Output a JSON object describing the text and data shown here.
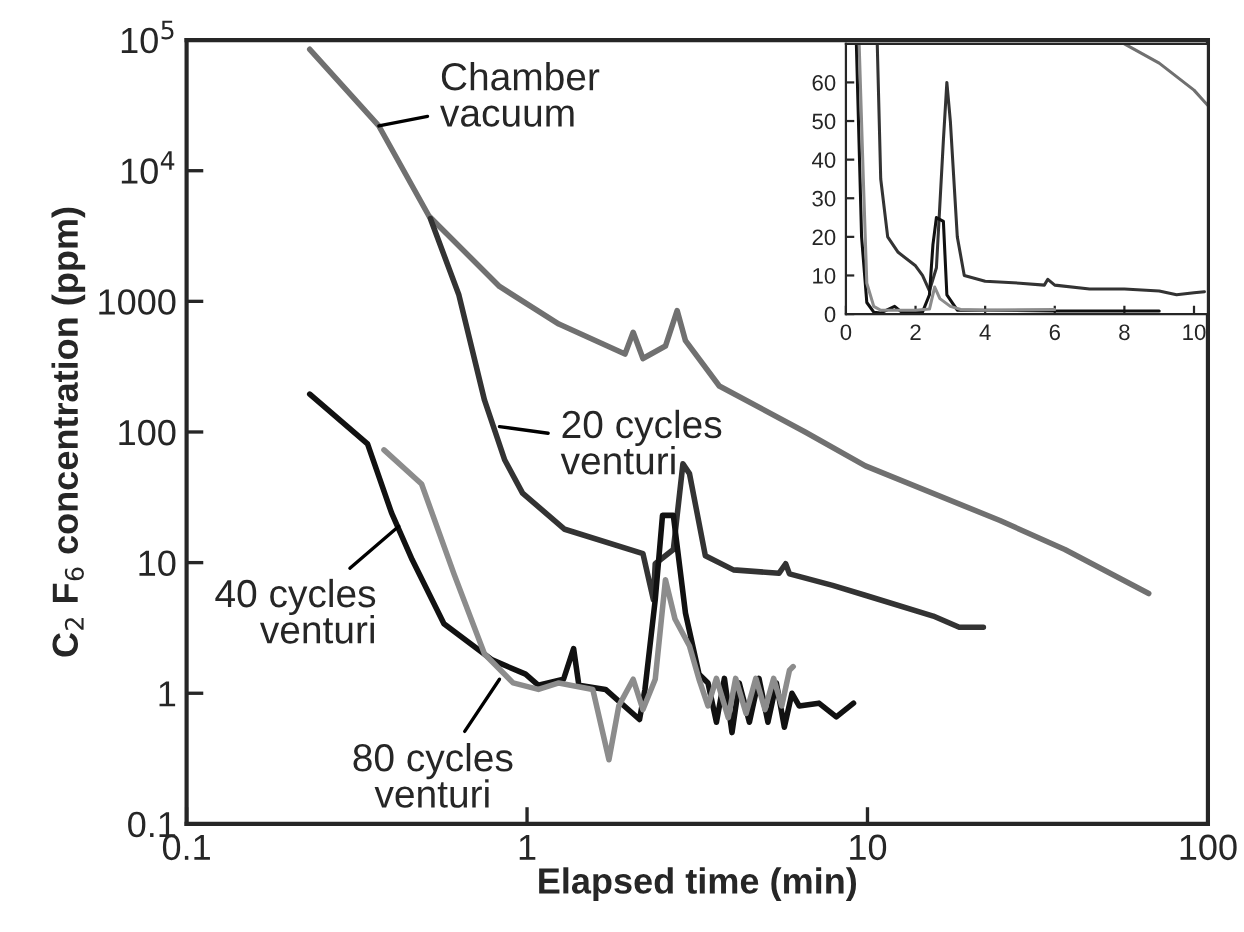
{
  "chart_data": [
    {
      "type": "line",
      "xlabel": "Elapsed time (min)",
      "ylabel": "C$_{2}$ F$_{6}$ concentration (ppm)",
      "log": "xy",
      "xlim": [
        0.1,
        100
      ],
      "xticks": [
        0.1,
        1,
        10,
        100
      ],
      "ylim": [
        0.1,
        100000
      ],
      "yticks": [
        0.1,
        1,
        10,
        100,
        1000,
        {
          "value": 10000,
          "label": "10$^{4}$"
        },
        {
          "value": 100000,
          "label": "10$^{5}$"
        }
      ],
      "grid": false,
      "legend": false,
      "series": [
        {
          "color": "#707070",
          "x": [
            0.23,
            0.367,
            0.515,
            0.83,
            1.24,
            1.94,
            2.05,
            2.19,
            2.55,
            2.76,
            2.92,
            3.67,
            6.56,
            9.86,
            24.5,
            38,
            67
          ],
          "values": [
            85000,
            22000,
            4500,
            1300,
            670,
            395,
            580,
            365,
            455,
            850,
            500,
            225,
            100,
            55,
            21,
            12.6,
            5.8
          ]
        },
        {
          "color": "#333333",
          "x": [
            0.52,
            0.63,
            0.75,
            0.86,
            0.97,
            1.29,
            2.19,
            2.35,
            2.38,
            2.69,
            2.87,
            3.0,
            3.34,
            4.04,
            5.5,
            5.75,
            5.9,
            7.9,
            9.9,
            15.6,
            18.6,
            21.9
          ],
          "values": [
            4300,
            1130,
            175,
            61,
            34,
            18,
            11.7,
            5.2,
            9.8,
            12.6,
            57,
            48,
            11.3,
            8.8,
            8.3,
            9.8,
            8.2,
            6.7,
            5.6,
            3.9,
            3.2,
            3.2
          ]
        },
        {
          "color": "#111111",
          "x": [
            0.23,
            0.34,
            0.4,
            0.46,
            0.57,
            0.79,
            0.99,
            1.08,
            1.28,
            1.37,
            1.42,
            1.7,
            2.14,
            2.22,
            2.38,
            2.5,
            2.69,
            2.92,
            3.2,
            3.4,
            3.6,
            3.8,
            4.0,
            4.2,
            4.5,
            4.8,
            5.1,
            5.4,
            5.7,
            6.0,
            6.3,
            7.2,
            8.1,
            9.1
          ],
          "values": [
            195,
            81,
            24,
            10.5,
            3.4,
            1.8,
            1.4,
            1.15,
            1.28,
            2.2,
            1.15,
            1.07,
            0.63,
            1.07,
            5.2,
            23,
            23,
            4.1,
            1.4,
            1.2,
            0.6,
            1.3,
            0.5,
            1.2,
            0.6,
            1.3,
            0.6,
            1.2,
            0.55,
            1.0,
            0.8,
            0.84,
            0.66,
            0.84
          ]
        },
        {
          "color": "#8c8c8c",
          "x": [
            0.38,
            0.49,
            0.61,
            0.75,
            0.91,
            1.08,
            1.24,
            1.56,
            1.74,
            1.86,
            2.05,
            2.19,
            2.38,
            2.55,
            2.72,
            3.0,
            3.2,
            3.4,
            3.6,
            3.9,
            4.1,
            4.4,
            4.7,
            5.0,
            5.3,
            5.6,
            5.9,
            6.05
          ],
          "values": [
            73,
            40,
            8.2,
            2.0,
            1.2,
            1.07,
            1.2,
            1.07,
            0.31,
            0.8,
            1.28,
            0.75,
            1.28,
            7.4,
            3.7,
            2.3,
            1.28,
            0.8,
            1.3,
            0.65,
            1.3,
            0.7,
            1.3,
            0.75,
            1.3,
            0.8,
            1.5,
            1.6
          ]
        }
      ],
      "annotations": [
        {
          "text": "Chamber\nvacuum",
          "x": 0.367,
          "y": 22000
        },
        {
          "text": "20 cycles\nventuri",
          "x": 0.83,
          "y": 110
        },
        {
          "text": "40 cycles\nventuri",
          "x": 0.42,
          "y": 19
        },
        {
          "text": "80 cycles\nventuri",
          "x": 0.83,
          "y": 1.28
        }
      ]
    },
    {
      "type": "line",
      "xlim": [
        0,
        10.4
      ],
      "xticks": [
        0,
        2,
        4,
        6,
        8,
        10
      ],
      "ylim": [
        0,
        70
      ],
      "yticks": [
        0,
        10,
        20,
        30,
        40,
        50,
        60
      ],
      "grid": false,
      "legend": false,
      "series": [
        {
          "color": "#707070",
          "x": [
            8.0,
            9.0,
            10.0,
            10.4
          ],
          "values": [
            70,
            65,
            58,
            54
          ]
        },
        {
          "color": "#333333",
          "x": [
            0.9,
            1.0,
            1.2,
            1.5,
            2.0,
            2.2,
            2.4,
            2.6,
            2.8,
            2.9,
            3.0,
            3.2,
            3.4,
            4,
            5,
            5.7,
            5.8,
            6,
            7,
            8,
            9,
            9.5,
            10,
            10.3
          ],
          "values": [
            70,
            35,
            20,
            16,
            12.5,
            10,
            6,
            12,
            45,
            60,
            50,
            20,
            10,
            8.5,
            8,
            7.5,
            9,
            7.5,
            6.5,
            6.5,
            6,
            5,
            5.5,
            5.8
          ]
        },
        {
          "color": "#111111",
          "x": [
            0.3,
            0.45,
            0.6,
            0.8,
            1.0,
            1.4,
            1.6,
            2.2,
            2.4,
            2.5,
            2.6,
            2.8,
            2.9,
            3.2,
            4,
            6,
            9
          ],
          "values": [
            70,
            20,
            3,
            0.5,
            0.3,
            2,
            0.5,
            0.5,
            5,
            18,
            25,
            24,
            5,
            1,
            1,
            0.8,
            0.8
          ]
        },
        {
          "color": "#8c8c8c",
          "x": [
            0.38,
            0.5,
            0.6,
            0.8,
            1.0,
            2.0,
            2.4,
            2.55,
            2.7,
            3.0,
            3.3,
            4,
            6
          ],
          "values": [
            70,
            35,
            8,
            2,
            1,
            1,
            1.3,
            7,
            4,
            2,
            1.2,
            1,
            1.2
          ]
        }
      ]
    }
  ]
}
